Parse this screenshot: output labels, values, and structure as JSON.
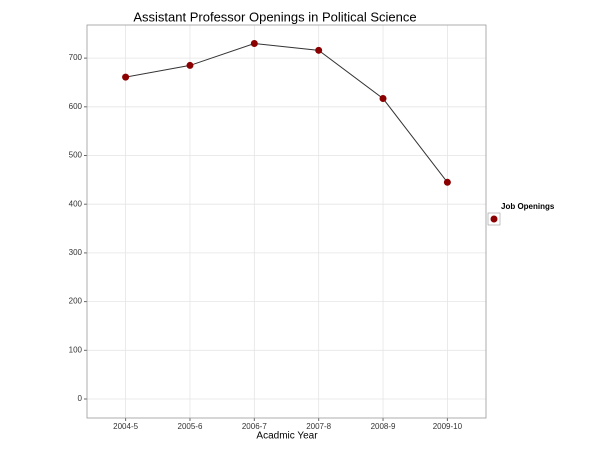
{
  "chart_data": {
    "type": "line",
    "title": "Assistant Professor Openings in Political Science",
    "x_label": "Acadmic Year",
    "categories": [
      "2004-5",
      "2005-6",
      "2006-7",
      "2007-8",
      "2008-9",
      "2009-10"
    ],
    "series": [
      {
        "name": "Job Openings",
        "color": "#8b0000",
        "values": [
          661,
          685,
          730,
          716,
          617,
          445
        ]
      }
    ],
    "line_color": "#333333",
    "ylim": [
      -39,
      768
    ],
    "yticks": [
      0,
      100,
      200,
      300,
      400,
      500,
      600,
      700
    ],
    "grid": true,
    "legend": "right"
  }
}
